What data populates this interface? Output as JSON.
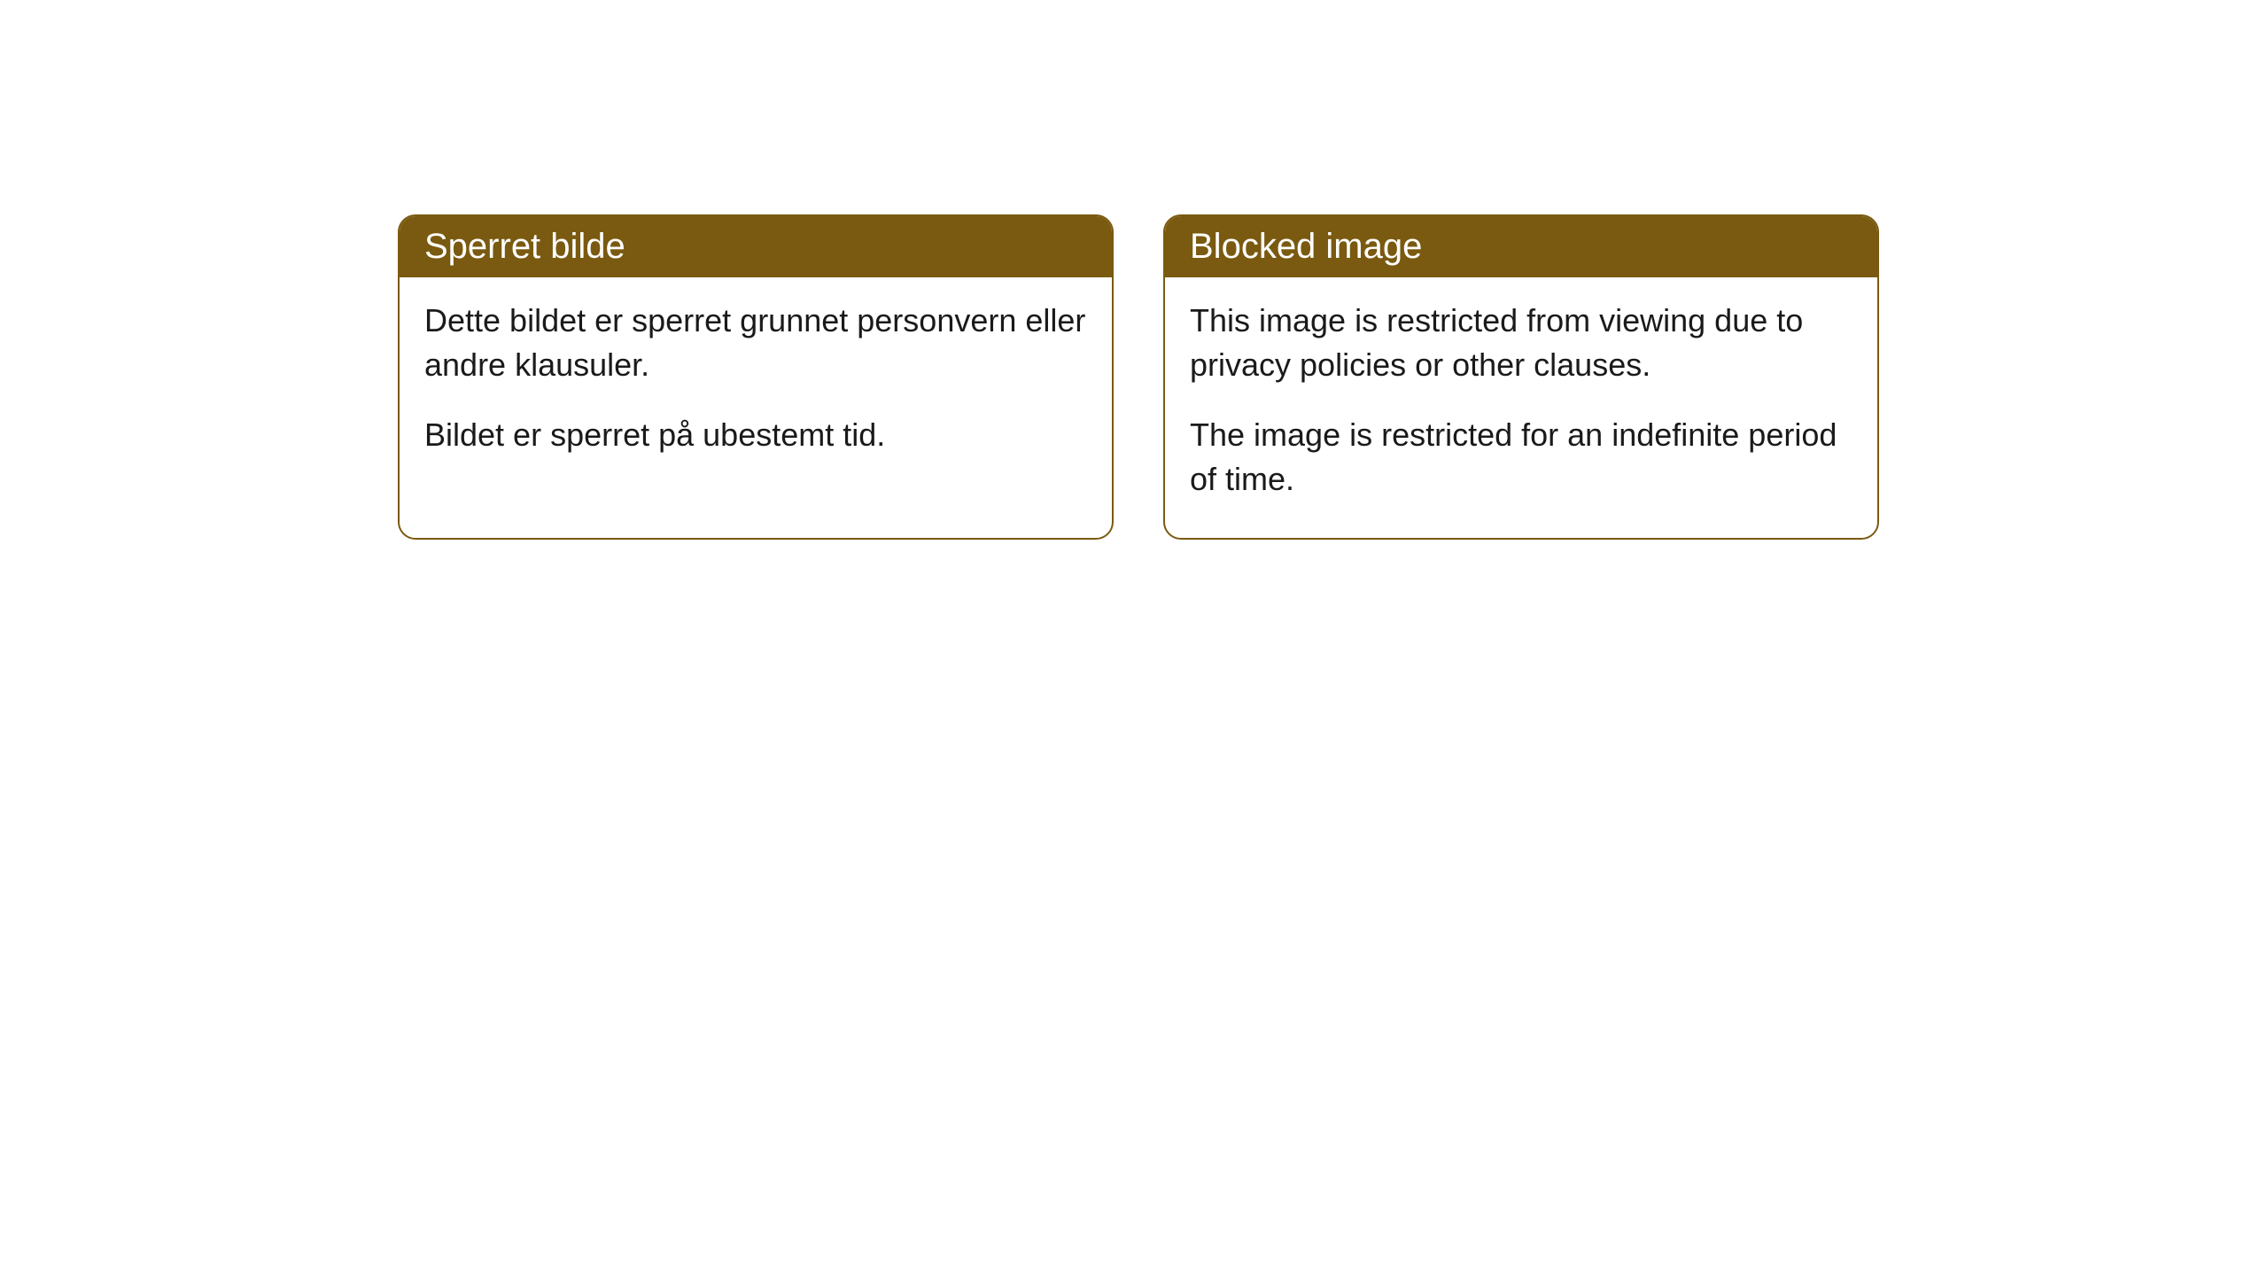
{
  "cards": [
    {
      "title": "Sperret bilde",
      "paragraph1": "Dette bildet er sperret grunnet personvern eller andre klausuler.",
      "paragraph2": "Bildet er sperret på ubestemt tid."
    },
    {
      "title": "Blocked image",
      "paragraph1": "This image is restricted from viewing due to privacy policies or other clauses.",
      "paragraph2": "The image is restricted for an indefinite period of time."
    }
  ],
  "style": {
    "header_background": "#7a5a10",
    "header_text_color": "#ffffff",
    "border_color": "#7a5a10",
    "body_text_color": "#1a1a1a",
    "card_background": "#ffffff",
    "page_background": "#ffffff",
    "border_radius": "20px",
    "title_fontsize": 40,
    "body_fontsize": 36
  }
}
